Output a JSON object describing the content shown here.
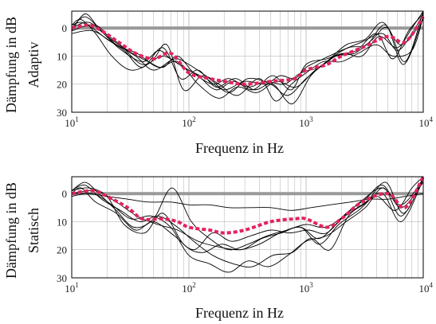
{
  "chart_data": [
    {
      "type": "line",
      "xscale": "log",
      "xlim": [
        10,
        10000
      ],
      "ylim": [
        0,
        30
      ],
      "y_inverted": true,
      "xlabel": "Frequenz in Hz",
      "ylabel_line1": "Dämpfung in dB",
      "ylabel_line2": "Adaptiv",
      "x_ticks": [
        {
          "base": "10",
          "exp": "1",
          "value": 10
        },
        {
          "base": "10",
          "exp": "2",
          "value": 100
        },
        {
          "base": "10",
          "exp": "3",
          "value": 1000
        },
        {
          "base": "10",
          "exp": "4",
          "value": 10000
        }
      ],
      "y_ticks": [
        "0",
        "10",
        "20",
        "30"
      ],
      "y_tick_values": [
        0,
        10,
        20,
        30
      ],
      "grid": true,
      "reference_color": "#999999",
      "mean_color": "#e0245e",
      "individual_color": "#000000",
      "reference": {
        "x": [
          10,
          10000
        ],
        "y": [
          0,
          0
        ]
      },
      "mean": {
        "x": [
          10,
          14,
          18,
          25,
          35,
          50,
          70,
          100,
          150,
          200,
          300,
          500,
          800,
          1000,
          1500,
          2000,
          3000,
          5000,
          7000,
          10000
        ],
        "y": [
          0,
          -1,
          1,
          5,
          9,
          11,
          9,
          16,
          18,
          19,
          20,
          19,
          18,
          15,
          13,
          10,
          7,
          3,
          5,
          -4
        ]
      },
      "series": [
        {
          "x": [
            10,
            13,
            17,
            25,
            40,
            55,
            70,
            100,
            140,
            200,
            300,
            450,
            600,
            800,
            1000,
            1400,
            2000,
            3000,
            4500,
            6000,
            8000,
            10000
          ],
          "y": [
            1,
            -5,
            0,
            7,
            12,
            8,
            11,
            15,
            18,
            22,
            19,
            20,
            17,
            18,
            14,
            11,
            8,
            5,
            2,
            8,
            2,
            -5
          ]
        },
        {
          "x": [
            10,
            14,
            20,
            30,
            45,
            60,
            80,
            110,
            160,
            220,
            320,
            450,
            650,
            900,
            1300,
            1800,
            2600,
            3700,
            5000,
            7000,
            10000
          ],
          "y": [
            0,
            -2,
            3,
            8,
            12,
            14,
            10,
            16,
            20,
            18,
            21,
            19,
            20,
            16,
            14,
            10,
            9,
            4,
            0,
            12,
            -6
          ]
        },
        {
          "x": [
            10,
            12,
            16,
            22,
            32,
            48,
            65,
            90,
            130,
            180,
            260,
            400,
            550,
            750,
            1000,
            1400,
            2000,
            2800,
            4000,
            5500,
            8000,
            10000
          ],
          "y": [
            -1,
            -3,
            2,
            10,
            15,
            12,
            6,
            22,
            17,
            20,
            24,
            18,
            26,
            20,
            16,
            12,
            12,
            9,
            6,
            10,
            8,
            -4
          ]
        },
        {
          "x": [
            10,
            15,
            22,
            35,
            50,
            75,
            100,
            150,
            220,
            320,
            500,
            700,
            1000,
            1500,
            2200,
            3200,
            4500,
            6500,
            10000
          ],
          "y": [
            2,
            1,
            5,
            10,
            15,
            11,
            13,
            18,
            23,
            18,
            20,
            24,
            18,
            12,
            6,
            4,
            -2,
            6,
            -3
          ]
        },
        {
          "x": [
            10,
            13,
            18,
            26,
            40,
            60,
            90,
            120,
            170,
            240,
            350,
            520,
            750,
            1000,
            1500,
            2100,
            3000,
            4200,
            6000,
            8000,
            10000
          ],
          "y": [
            0,
            -4,
            1,
            6,
            13,
            10,
            14,
            17,
            22,
            19,
            22,
            17,
            22,
            13,
            11,
            9,
            10,
            3,
            7,
            0,
            -6
          ]
        },
        {
          "x": [
            10,
            16,
            24,
            36,
            55,
            80,
            120,
            180,
            260,
            380,
            560,
            820,
            1200,
            1800,
            2700,
            4000,
            5500,
            7500,
            10000
          ],
          "y": [
            1,
            -1,
            6,
            9,
            14,
            12,
            20,
            25,
            21,
            23,
            19,
            21,
            15,
            10,
            8,
            2,
            11,
            1,
            -5
          ]
        },
        {
          "x": [
            10,
            12,
            15,
            20,
            28,
            40,
            60,
            85,
            120,
            170,
            250,
            360,
            520,
            760,
            1100,
            1600,
            2300,
            3300,
            4800,
            6800,
            10000
          ],
          "y": [
            -1,
            -2,
            0,
            4,
            8,
            14,
            7,
            18,
            15,
            21,
            18,
            22,
            20,
            27,
            17,
            11,
            7,
            6,
            -1,
            13,
            -4
          ]
        }
      ]
    },
    {
      "type": "line",
      "xscale": "log",
      "xlim": [
        10,
        10000
      ],
      "ylim": [
        0,
        30
      ],
      "y_inverted": true,
      "xlabel": "Frequenz in Hz",
      "ylabel_line1": "Dämpfung in dB",
      "ylabel_line2": "Statisch",
      "x_ticks": [
        {
          "base": "10",
          "exp": "1",
          "value": 10
        },
        {
          "base": "10",
          "exp": "2",
          "value": 100
        },
        {
          "base": "10",
          "exp": "3",
          "value": 1000
        },
        {
          "base": "10",
          "exp": "4",
          "value": 10000
        }
      ],
      "y_ticks": [
        "0",
        "10",
        "20",
        "30"
      ],
      "y_tick_values": [
        0,
        10,
        20,
        30
      ],
      "grid": true,
      "reference_color": "#999999",
      "mean_color": "#e0245e",
      "individual_color": "#000000",
      "reference": {
        "x": [
          10,
          10000
        ],
        "y": [
          0,
          0
        ]
      },
      "mean": {
        "x": [
          10,
          15,
          20,
          30,
          40,
          60,
          80,
          100,
          150,
          200,
          300,
          500,
          800,
          1000,
          1500,
          2000,
          3000,
          5000,
          7000,
          10000
        ],
        "y": [
          0,
          -1,
          1,
          5,
          9,
          9,
          10,
          12,
          13,
          14,
          13,
          10,
          9,
          9,
          12,
          9,
          3,
          0,
          5,
          -6
        ]
      },
      "series": [
        {
          "x": [
            10,
            14,
            20,
            30,
            45,
            70,
            100,
            150,
            220,
            330,
            500,
            750,
            1100,
            1600,
            2400,
            3500,
            5000,
            7000,
            10000
          ],
          "y": [
            0,
            0,
            1,
            2,
            3,
            3,
            4,
            4,
            5,
            5,
            5,
            6,
            5,
            4,
            3,
            2,
            2,
            1,
            0
          ]
        },
        {
          "x": [
            10,
            13,
            18,
            26,
            38,
            55,
            80,
            110,
            160,
            240,
            350,
            520,
            760,
            1100,
            1600,
            2300,
            3300,
            4800,
            6800,
            10000
          ],
          "y": [
            -1,
            -3,
            2,
            6,
            10,
            8,
            12,
            17,
            22,
            25,
            26,
            22,
            21,
            16,
            20,
            8,
            3,
            -4,
            7,
            -6
          ]
        },
        {
          "x": [
            10,
            15,
            22,
            32,
            48,
            70,
            100,
            150,
            220,
            320,
            480,
            700,
            1000,
            1500,
            2200,
            3200,
            4600,
            6500,
            10000
          ],
          "y": [
            1,
            0,
            4,
            9,
            8,
            12,
            22,
            25,
            28,
            24,
            26,
            22,
            17,
            15,
            10,
            5,
            -2,
            8,
            -5
          ]
        },
        {
          "x": [
            10,
            12,
            16,
            24,
            35,
            50,
            75,
            110,
            160,
            230,
            340,
            500,
            720,
            1050,
            1500,
            2200,
            3200,
            4500,
            6500,
            10000
          ],
          "y": [
            0,
            -2,
            3,
            7,
            13,
            10,
            15,
            20,
            14,
            17,
            15,
            13,
            14,
            13,
            14,
            7,
            2,
            -3,
            5,
            -4
          ]
        },
        {
          "x": [
            10,
            14,
            20,
            28,
            42,
            60,
            90,
            130,
            190,
            280,
            420,
            620,
            900,
            1300,
            1900,
            2800,
            4000,
            5800,
            8000,
            10000
          ],
          "y": [
            -1,
            -2,
            1,
            11,
            14,
            7,
            18,
            21,
            18,
            20,
            16,
            14,
            12,
            18,
            11,
            6,
            1,
            6,
            -2,
            -6
          ]
        },
        {
          "x": [
            10,
            16,
            24,
            36,
            54,
            80,
            120,
            180,
            270,
            400,
            600,
            900,
            1300,
            2000,
            3000,
            4500,
            6500,
            10000
          ],
          "y": [
            0,
            -1,
            3,
            8,
            11,
            13,
            17,
            19,
            20,
            18,
            14,
            12,
            16,
            9,
            4,
            0,
            10,
            -5
          ]
        },
        {
          "x": [
            10,
            13,
            17,
            24,
            34,
            50,
            72,
            105,
            150,
            220,
            320,
            470,
            690,
            1000,
            1450,
            2100,
            3100,
            4500,
            6500,
            10000
          ],
          "y": [
            -1,
            -4,
            0,
            6,
            12,
            9,
            -2,
            10,
            16,
            20,
            18,
            15,
            13,
            11,
            12,
            8,
            2,
            -2,
            4,
            -5
          ]
        }
      ]
    }
  ]
}
